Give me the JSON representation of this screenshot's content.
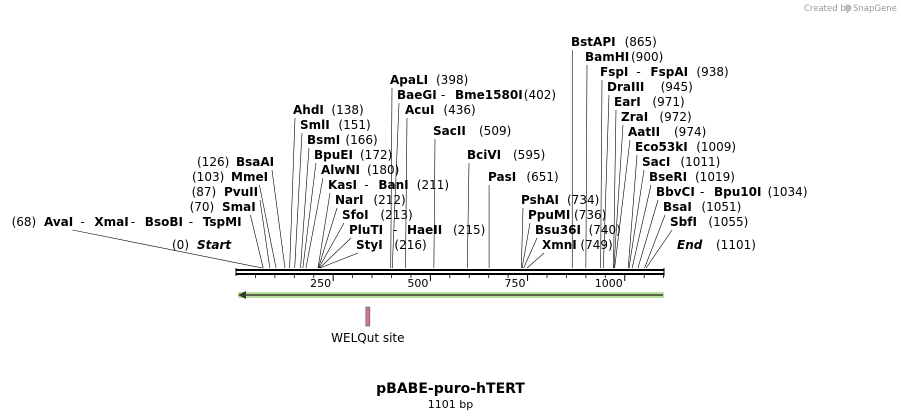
{
  "credit": {
    "created_by": "Created by",
    "brand": "SnapGene"
  },
  "map": {
    "name": "pBABE-puro-hTERT",
    "length_label": "1101 bp",
    "length_bp": 1101,
    "ticks": [
      "250",
      "500",
      "750",
      "1000"
    ],
    "start_label": "Start",
    "start_pos": "(0)",
    "end_label": "End",
    "end_pos": "(1101)"
  },
  "sites": [
    {
      "name": "AvaI",
      "pos": "(68)",
      "extra": [
        "XmaI",
        "BsoBI",
        "TspMI"
      ]
    },
    {
      "name": "SmaI",
      "pos": "(70)"
    },
    {
      "name": "PvuII",
      "pos": "(87)"
    },
    {
      "name": "MmeI",
      "pos": "(103)"
    },
    {
      "name": "BsaAI",
      "pos": "(126)"
    },
    {
      "name": "AhdI",
      "pos": "(138)"
    },
    {
      "name": "SmlI",
      "pos": "(151)"
    },
    {
      "name": "BsmI",
      "pos": "(166)"
    },
    {
      "name": "BpuEI",
      "pos": "(172)"
    },
    {
      "name": "AlwNI",
      "pos": "(180)"
    },
    {
      "name": "KasI",
      "pos": "(211)",
      "extra": [
        "BanI"
      ]
    },
    {
      "name": "NarI",
      "pos": "(212)"
    },
    {
      "name": "SfoI",
      "pos": "(213)"
    },
    {
      "name": "PluTI",
      "pos": "(215)",
      "extra": [
        "HaeII"
      ]
    },
    {
      "name": "StyI",
      "pos": "(216)"
    },
    {
      "name": "ApaLI",
      "pos": "(398)"
    },
    {
      "name": "BaeGI",
      "pos": "(402)",
      "extra": [
        "Bme1580I"
      ]
    },
    {
      "name": "AcuI",
      "pos": "(436)"
    },
    {
      "name": "SacII",
      "pos": "(509)"
    },
    {
      "name": "BciVI",
      "pos": "(595)"
    },
    {
      "name": "PasI",
      "pos": "(651)"
    },
    {
      "name": "PshAI",
      "pos": "(734)"
    },
    {
      "name": "PpuMI",
      "pos": "(736)"
    },
    {
      "name": "Bsu36I",
      "pos": "(740)"
    },
    {
      "name": "XmnI",
      "pos": "(749)"
    },
    {
      "name": "BstAPI",
      "pos": "(865)"
    },
    {
      "name": "BamHI",
      "pos": "(900)"
    },
    {
      "name": "FspI",
      "pos": "(938)",
      "extra": [
        "FspAI"
      ]
    },
    {
      "name": "DraIII",
      "pos": "(945)"
    },
    {
      "name": "EarI",
      "pos": "(971)"
    },
    {
      "name": "ZraI",
      "pos": "(972)"
    },
    {
      "name": "AatII",
      "pos": "(974)"
    },
    {
      "name": "Eco53kI",
      "pos": "(1009)"
    },
    {
      "name": "SacI",
      "pos": "(1011)"
    },
    {
      "name": "BseRI",
      "pos": "(1019)"
    },
    {
      "name": "BbvCI",
      "pos": "(1034)",
      "extra": [
        "Bpu10I"
      ]
    },
    {
      "name": "BsaI",
      "pos": "(1051)"
    },
    {
      "name": "SbfI",
      "pos": "(1055)"
    }
  ],
  "features": [
    {
      "name": "WELQut site",
      "start": 334,
      "end": 340,
      "color": "#c97a94"
    }
  ],
  "orf": {
    "start": 0,
    "end": 1101,
    "color": "#7fc64a"
  }
}
